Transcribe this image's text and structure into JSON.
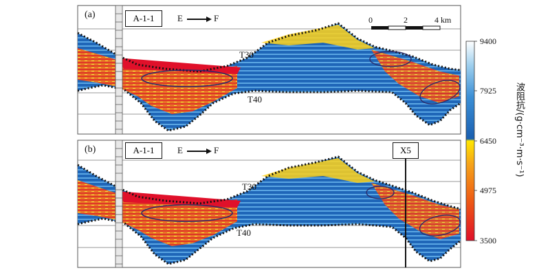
{
  "panels": [
    {
      "label": "(a)",
      "well": "A-1-1",
      "direction": "E → F",
      "horizons": [
        "T30",
        "T40"
      ]
    },
    {
      "label": "(b)",
      "well": "A-1-1",
      "direction": "E → F",
      "horizons": [
        "T30",
        "T40"
      ],
      "well2": "X5"
    }
  ],
  "scale_bar": {
    "ticks": [
      "0",
      "2",
      "4 km"
    ]
  },
  "colorbar": {
    "title": "波阻抗/(g·cm⁻³·m·s⁻¹)",
    "ticks": [
      "9400",
      "7925",
      "6450",
      "4975",
      "3500"
    ],
    "colors": {
      "high": "#ffffff",
      "mid_high": "#1a6fbf",
      "mid": "#ffe600",
      "mid_low": "#f07a1a",
      "low": "#e0102a"
    }
  }
}
